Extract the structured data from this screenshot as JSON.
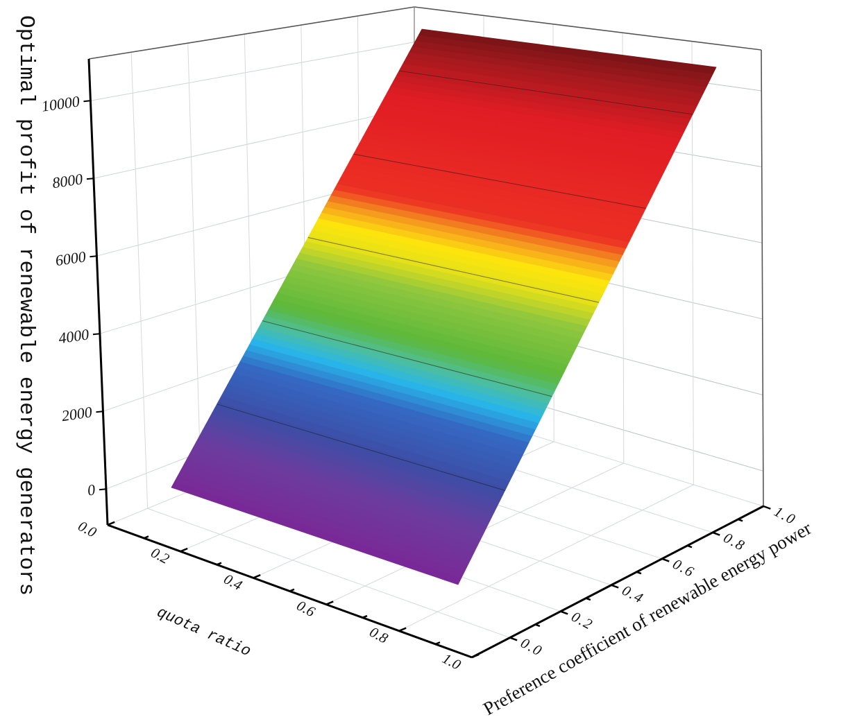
{
  "chart_data": {
    "type": "surface",
    "xlabel": "quota ratio",
    "ylabel": "Preference coefficient of renewable energy power",
    "zlabel": "Optimal profit of renewable energy generators",
    "x_ticks": [
      "0.0",
      "0.2",
      "0.4",
      "0.6",
      "0.8",
      "1.0"
    ],
    "y_ticks": [
      "0.0",
      "0.2",
      "0.4",
      "0.6",
      "0.8",
      "1.0"
    ],
    "z_ticks": [
      "0",
      "2000",
      "4000",
      "6000",
      "8000",
      "10000"
    ],
    "xlim": [
      0,
      1
    ],
    "ylim": [
      -0.15,
      1.0
    ],
    "zlim": [
      -925,
      11075
    ],
    "grid": true,
    "colormap": "rainbow",
    "x": [
      0,
      0.2,
      0.4,
      0.6,
      0.8,
      1.0
    ],
    "y": [
      0,
      0.2,
      0.4,
      0.6,
      0.8,
      1.0
    ],
    "z": [
      [
        0,
        0,
        0,
        0,
        0,
        0
      ],
      [
        2200,
        2200,
        2200,
        2200,
        2200,
        2200
      ],
      [
        4400,
        4400,
        4400,
        4400,
        4400,
        4400
      ],
      [
        6600,
        6600,
        6600,
        6600,
        6600,
        6600
      ],
      [
        8800,
        8800,
        8800,
        8800,
        8800,
        8800
      ],
      [
        11000,
        11000,
        11000,
        11000,
        11000,
        11000
      ]
    ],
    "contour_levels": [
      2000,
      4000,
      6000,
      8000,
      10000
    ]
  }
}
